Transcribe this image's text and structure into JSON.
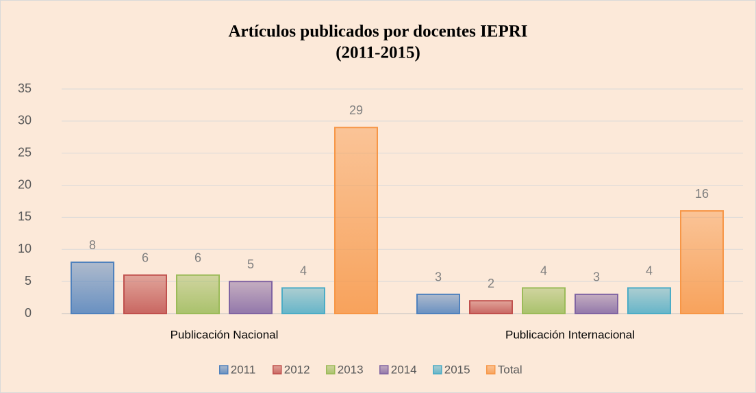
{
  "chart_data": {
    "type": "bar",
    "title": [
      "Artículos publicados por docentes IEPRI",
      "(2011-2015)"
    ],
    "categories": [
      "Publicación Nacional",
      "Publicación Internacional"
    ],
    "series": [
      {
        "name": "2011",
        "color": "#4f81bd",
        "values": [
          8,
          3
        ]
      },
      {
        "name": "2012",
        "color": "#c0504d",
        "values": [
          6,
          2
        ]
      },
      {
        "name": "2013",
        "color": "#9bbb59",
        "values": [
          6,
          4
        ]
      },
      {
        "name": "2014",
        "color": "#8064a2",
        "values": [
          5,
          3
        ]
      },
      {
        "name": "2015",
        "color": "#4bacc6",
        "values": [
          4,
          4
        ]
      },
      {
        "name": "Total",
        "color": "#f79646",
        "values": [
          29,
          16
        ]
      }
    ],
    "ylim": [
      0,
      35
    ],
    "yticks": [
      0,
      5,
      10,
      15,
      20,
      25,
      30,
      35
    ],
    "grid": true,
    "legend": "bottom"
  }
}
